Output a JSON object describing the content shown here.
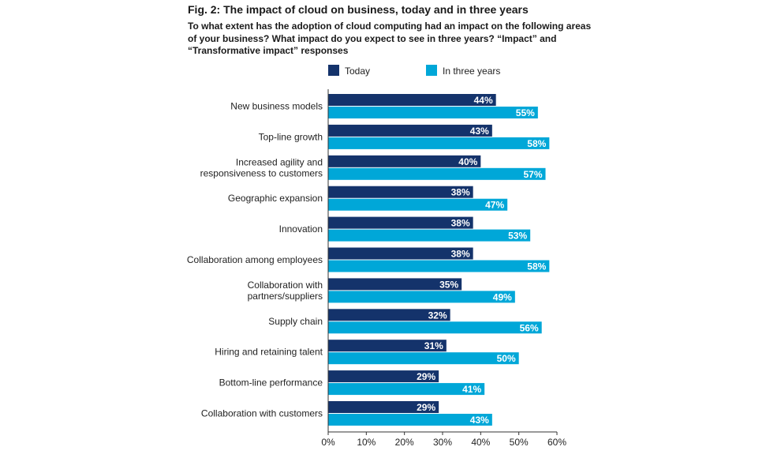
{
  "header": {
    "fig_prefix": "Fig. 2:",
    "title_rest": " The impact of cloud on business, today and in three years",
    "subtitle": "To what extent has the adoption of cloud computing had an impact on the following areas of your business? What impact do you expect to see in three years? “Impact” and “Transformative impact” responses"
  },
  "chart_data": {
    "type": "bar",
    "orientation": "horizontal",
    "categories": [
      [
        "New business models"
      ],
      [
        "Top-line growth"
      ],
      [
        "Increased agility and",
        "responsiveness to customers"
      ],
      [
        "Geographic expansion"
      ],
      [
        "Innovation"
      ],
      [
        "Collaboration among employees"
      ],
      [
        "Collaboration with",
        "partners/suppliers"
      ],
      [
        "Supply chain"
      ],
      [
        "Hiring and retaining talent"
      ],
      [
        "Bottom-line performance"
      ],
      [
        "Collaboration with customers"
      ]
    ],
    "series": [
      {
        "name": "Today",
        "color": "#14336b",
        "values": [
          44,
          43,
          40,
          38,
          38,
          38,
          35,
          32,
          31,
          29,
          29
        ]
      },
      {
        "name": "In three years",
        "color": "#00a7d8",
        "values": [
          55,
          58,
          57,
          47,
          53,
          58,
          49,
          56,
          50,
          41,
          43
        ]
      }
    ],
    "xlim": [
      0,
      60
    ],
    "xticks": [
      0,
      10,
      20,
      30,
      40,
      50,
      60
    ],
    "tick_suffix": "%",
    "value_suffix": "%",
    "legend_position": "top",
    "grid": false
  }
}
